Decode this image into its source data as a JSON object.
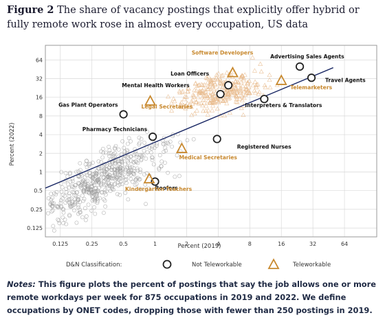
{
  "header": {
    "figure_label": "Figure 2",
    "title": "The share of vacancy postings that explicitly offer hybrid or fully remote work rose in almost every occupation, US data"
  },
  "notes": {
    "label": "Notes:",
    "text": "This figure plots the percent of postings that say the job allows one or more remote workdays per week for 875 occupations in 2019 and 2022. We define occupations by ONET codes, dropping those with fewer than 250 postings in 2019."
  },
  "colors": {
    "not_teleworkable": "#222222",
    "teleworkable": "#c8892f",
    "fit_line": "#1c2a66",
    "background_not": "#9a9a9a",
    "background_tele": "#e7b98a",
    "plot_bg": "#ffffff",
    "grid": "#d9d9d9"
  },
  "chart_data": {
    "type": "scatter",
    "xlabel": "Percent (2019)",
    "ylabel": "Percent (2022)",
    "x_scale": "log2",
    "y_scale": "log2",
    "xticks": [
      "0.125",
      "0.25",
      "0.5",
      "1",
      "2",
      "4",
      "8",
      "16",
      "32",
      "64"
    ],
    "yticks": [
      "0.125",
      "0.25",
      "0.5",
      "1",
      "2",
      "4",
      "8",
      "16",
      "32",
      "64"
    ],
    "xlim": [
      0.09,
      130
    ],
    "ylim": [
      0.09,
      110
    ],
    "grid": true,
    "legend": {
      "title": "D&N Classification:",
      "position": "bottom",
      "items": [
        {
          "name": "Not Teleworkable",
          "marker": "circle"
        },
        {
          "name": "Teleworkable",
          "marker": "triangle"
        }
      ]
    },
    "fit_line": {
      "x": [
        0.09,
        50
      ],
      "y": [
        0.55,
        48
      ]
    },
    "highlighted": [
      {
        "label": "Advertising Sales Agents",
        "x": 24,
        "y": 50,
        "class": "Not Teleworkable"
      },
      {
        "label": "Travel Agents",
        "x": 31,
        "y": 33,
        "class": "Not Teleworkable"
      },
      {
        "label": "Loan Officers",
        "x": 5,
        "y": 25,
        "class": "Not Teleworkable"
      },
      {
        "label": "Mental Health Workers",
        "x": 4.2,
        "y": 18,
        "class": "Not Teleworkable"
      },
      {
        "label": "Interpreters & Translators",
        "x": 11,
        "y": 15,
        "class": "Not Teleworkable"
      },
      {
        "label": "Gas Plant Operators",
        "x": 0.5,
        "y": 8.5,
        "class": "Not Teleworkable"
      },
      {
        "label": "Pharmacy Technicians",
        "x": 0.95,
        "y": 3.7,
        "class": "Not Teleworkable"
      },
      {
        "label": "Registered Nurses",
        "x": 3.9,
        "y": 3.4,
        "class": "Not Teleworkable"
      },
      {
        "label": "Roofers",
        "x": 1.0,
        "y": 0.7,
        "class": "Not Teleworkable"
      },
      {
        "label": "Software Developers",
        "x": 5.5,
        "y": 40,
        "class": "Teleworkable"
      },
      {
        "label": "Telemarketers",
        "x": 16,
        "y": 30,
        "class": "Teleworkable"
      },
      {
        "label": "Legal Secretaries",
        "x": 0.9,
        "y": 14,
        "class": "Teleworkable"
      },
      {
        "label": "Medical Secretaries",
        "x": 1.8,
        "y": 2.4,
        "class": "Teleworkable"
      },
      {
        "label": "Kindergarten Teachers",
        "x": 0.88,
        "y": 0.78,
        "class": "Teleworkable"
      }
    ]
  }
}
